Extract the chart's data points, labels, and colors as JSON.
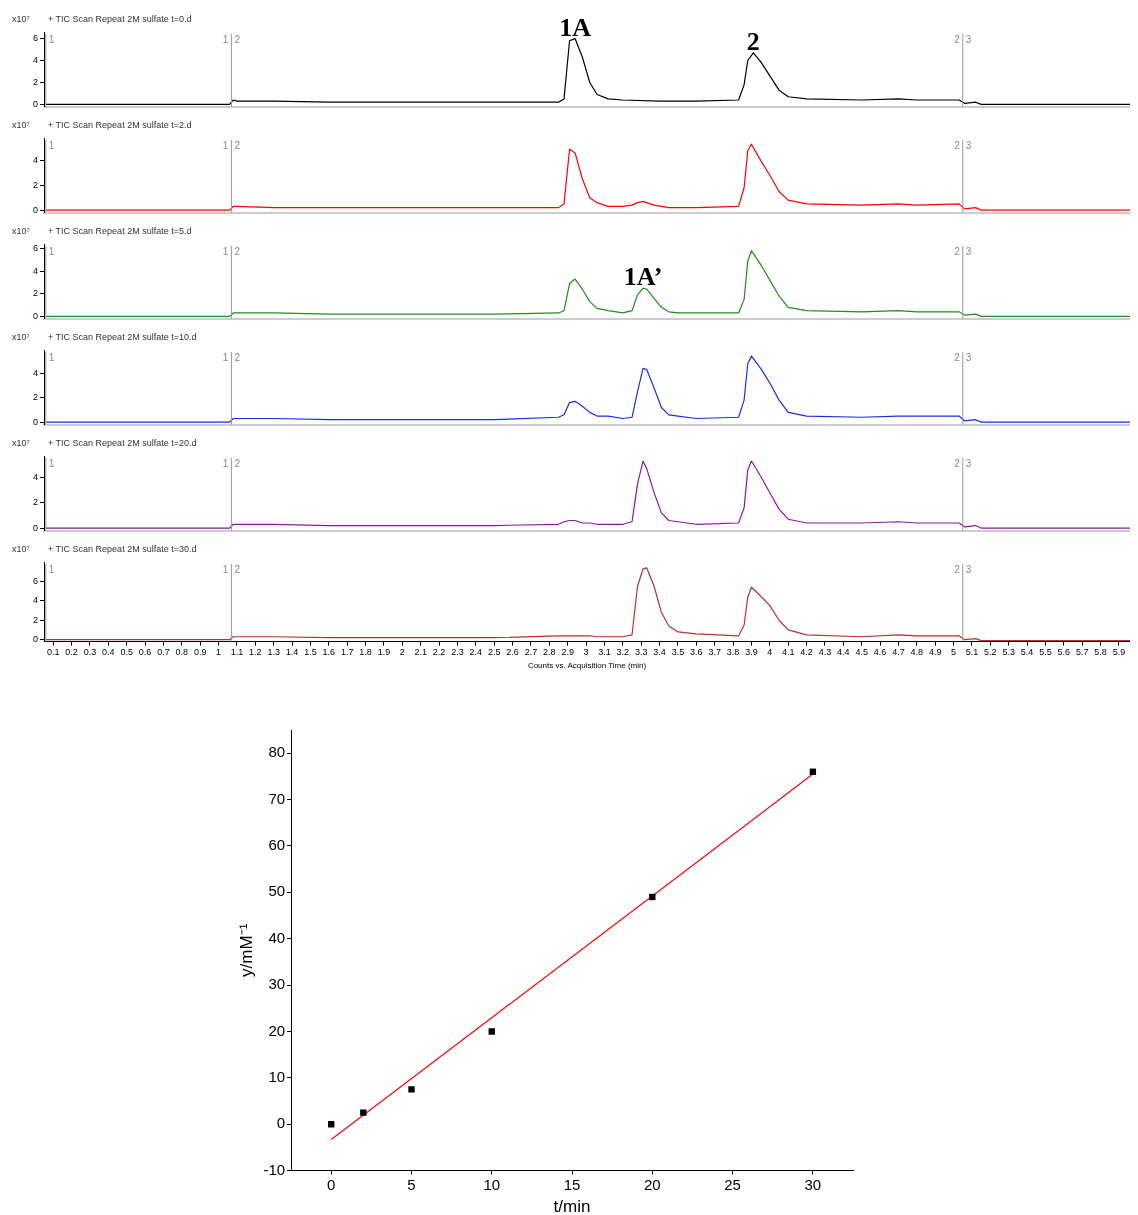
{
  "chart_data": [
    {
      "type": "line",
      "title": "+ TIC Scan Repeat 2M sulfate t=0.d",
      "ylabel": "x10⁷",
      "marker": "none",
      "grid": false,
      "tick_labels": "y",
      "xlim": [
        0.05,
        5.96
      ],
      "ylim": [
        -0.2,
        6.6
      ],
      "yticks": [
        0,
        2,
        4,
        6
      ],
      "x": [
        0.06,
        1.06,
        1.08,
        1.1,
        1.3,
        1.6,
        2.0,
        2.5,
        2.85,
        2.88,
        2.91,
        2.94,
        2.98,
        3.02,
        3.06,
        3.12,
        3.2,
        3.4,
        3.6,
        3.83,
        3.86,
        3.88,
        3.91,
        3.95,
        4.0,
        4.05,
        4.1,
        4.2,
        4.5,
        4.7,
        4.8,
        5.03,
        5.06,
        5.12,
        5.15,
        5.96
      ],
      "series": [
        {
          "color": "#000000",
          "values": [
            0,
            0,
            0.4,
            0.3,
            0.3,
            0.2,
            0.2,
            0.2,
            0.2,
            0.5,
            5.8,
            6.0,
            4.3,
            2.0,
            0.9,
            0.5,
            0.4,
            0.3,
            0.3,
            0.4,
            1.8,
            4.0,
            4.7,
            3.9,
            2.6,
            1.3,
            0.7,
            0.5,
            0.4,
            0.5,
            0.4,
            0.4,
            0.1,
            0.2,
            0,
            0
          ]
        }
      ],
      "ref_lines": [
        {
          "axis": "x",
          "value": 0.06,
          "color": "#999999"
        },
        {
          "axis": "x",
          "value": 1.07,
          "color": "#999999"
        },
        {
          "axis": "x",
          "value": 5.05,
          "color": "#999999"
        }
      ],
      "annotations": [
        {
          "text": "1A",
          "x": 2.94,
          "y": 6.0
        },
        {
          "text": "2",
          "x": 3.91,
          "y": 4.7
        },
        {
          "text": "1",
          "x": 0.06
        },
        {
          "text": "1 2",
          "x": 1.07
        },
        {
          "text": "2 3",
          "x": 5.05
        }
      ]
    },
    {
      "type": "line",
      "title": "+ TIC Scan Repeat 2M sulfate t=2.d",
      "ylabel": "x10⁷",
      "marker": "none",
      "grid": false,
      "tick_labels": "y",
      "xlim": [
        0.05,
        5.96
      ],
      "ylim": [
        -0.2,
        5.8
      ],
      "yticks": [
        0,
        2,
        4
      ],
      "x": [
        0.06,
        1.06,
        1.08,
        1.1,
        1.3,
        1.6,
        2.0,
        2.5,
        2.85,
        2.88,
        2.91,
        2.94,
        2.98,
        3.02,
        3.06,
        3.12,
        3.2,
        3.25,
        3.28,
        3.31,
        3.33,
        3.37,
        3.41,
        3.45,
        3.5,
        3.6,
        3.83,
        3.86,
        3.88,
        3.9,
        3.95,
        4.0,
        4.05,
        4.1,
        4.2,
        4.5,
        4.7,
        4.8,
        5.03,
        5.06,
        5.12,
        5.15,
        5.96
      ],
      "series": [
        {
          "color": "#ff0000",
          "values": [
            0,
            0,
            0.3,
            0.3,
            0.2,
            0.2,
            0.2,
            0.2,
            0.2,
            0.5,
            4.9,
            4.6,
            2.5,
            1.0,
            0.6,
            0.3,
            0.3,
            0.4,
            0.6,
            0.7,
            0.6,
            0.4,
            0.3,
            0.2,
            0.2,
            0.2,
            0.3,
            1.8,
            4.8,
            5.3,
            4.0,
            2.8,
            1.5,
            0.8,
            0.5,
            0.4,
            0.5,
            0.4,
            0.5,
            0.1,
            0.2,
            0,
            0
          ]
        }
      ],
      "ref_lines": [
        {
          "axis": "x",
          "value": 0.06,
          "color": "#999999"
        },
        {
          "axis": "x",
          "value": 1.07,
          "color": "#999999"
        },
        {
          "axis": "x",
          "value": 5.05,
          "color": "#999999"
        }
      ],
      "annotations": [
        {
          "text": "1",
          "x": 0.06
        },
        {
          "text": "1 2",
          "x": 1.07
        },
        {
          "text": "2 3",
          "x": 5.05
        }
      ]
    },
    {
      "type": "line",
      "title": "+ TIC Scan Repeat 2M sulfate t=5.d",
      "ylabel": "x10⁷",
      "marker": "none",
      "grid": false,
      "tick_labels": "y",
      "xlim": [
        0.05,
        5.96
      ],
      "ylim": [
        -0.2,
        6.4
      ],
      "yticks": [
        0,
        2,
        4,
        6
      ],
      "x": [
        0.06,
        1.06,
        1.08,
        1.1,
        1.3,
        1.6,
        2.0,
        2.5,
        2.85,
        2.88,
        2.91,
        2.94,
        2.98,
        3.02,
        3.06,
        3.12,
        3.2,
        3.25,
        3.28,
        3.31,
        3.33,
        3.37,
        3.41,
        3.45,
        3.5,
        3.6,
        3.83,
        3.86,
        3.88,
        3.9,
        3.95,
        4.0,
        4.05,
        4.1,
        4.2,
        4.5,
        4.7,
        4.8,
        5.03,
        5.06,
        5.12,
        5.15,
        5.96
      ],
      "series": [
        {
          "color": "#228b22",
          "values": [
            0,
            0,
            0.3,
            0.3,
            0.3,
            0.2,
            0.2,
            0.2,
            0.3,
            0.5,
            2.9,
            3.3,
            2.4,
            1.3,
            0.7,
            0.5,
            0.3,
            0.5,
            1.9,
            2.5,
            2.4,
            1.6,
            0.8,
            0.4,
            0.3,
            0.3,
            0.3,
            1.5,
            4.9,
            5.8,
            4.6,
            3.2,
            1.8,
            0.8,
            0.5,
            0.4,
            0.5,
            0.4,
            0.4,
            0.1,
            0.2,
            0,
            0
          ]
        }
      ],
      "ref_lines": [
        {
          "axis": "x",
          "value": 0.06,
          "color": "#999999"
        },
        {
          "axis": "x",
          "value": 1.07,
          "color": "#999999"
        },
        {
          "axis": "x",
          "value": 5.05,
          "color": "#999999"
        }
      ],
      "annotations": [
        {
          "text": "1A’",
          "x": 3.31,
          "y": 2.5
        },
        {
          "text": "1",
          "x": 0.06
        },
        {
          "text": "1 2",
          "x": 1.07
        },
        {
          "text": "2 3",
          "x": 5.05
        }
      ]
    },
    {
      "type": "line",
      "title": "+ TIC Scan Repeat 2M sulfate t=10.d",
      "ylabel": "x10⁷",
      "marker": "none",
      "grid": false,
      "tick_labels": "y",
      "xlim": [
        0.05,
        5.96
      ],
      "ylim": [
        -0.2,
        5.9
      ],
      "yticks": [
        0,
        2,
        4
      ],
      "x": [
        0.06,
        1.06,
        1.08,
        1.1,
        1.3,
        1.6,
        2.0,
        2.5,
        2.85,
        2.88,
        2.91,
        2.94,
        2.98,
        3.02,
        3.06,
        3.12,
        3.2,
        3.25,
        3.28,
        3.31,
        3.33,
        3.37,
        3.41,
        3.45,
        3.5,
        3.6,
        3.83,
        3.86,
        3.88,
        3.9,
        3.95,
        4.0,
        4.05,
        4.1,
        4.2,
        4.5,
        4.7,
        4.8,
        5.03,
        5.06,
        5.12,
        5.15,
        5.96
      ],
      "series": [
        {
          "color": "#1a2ee6",
          "values": [
            0,
            0,
            0.3,
            0.3,
            0.3,
            0.2,
            0.2,
            0.2,
            0.4,
            0.6,
            1.6,
            1.7,
            1.3,
            0.8,
            0.5,
            0.5,
            0.3,
            0.4,
            2.5,
            4.4,
            4.3,
            2.8,
            1.2,
            0.6,
            0.5,
            0.3,
            0.4,
            1.8,
            4.8,
            5.4,
            4.4,
            3.2,
            1.8,
            0.8,
            0.5,
            0.4,
            0.5,
            0.5,
            0.5,
            0.1,
            0.2,
            0,
            0
          ]
        }
      ],
      "ref_lines": [
        {
          "axis": "x",
          "value": 0.06,
          "color": "#999999"
        },
        {
          "axis": "x",
          "value": 1.07,
          "color": "#999999"
        },
        {
          "axis": "x",
          "value": 5.05,
          "color": "#999999"
        }
      ],
      "annotations": [
        {
          "text": "1",
          "x": 0.06
        },
        {
          "text": "1 2",
          "x": 1.07
        },
        {
          "text": "2 3",
          "x": 5.05
        }
      ]
    },
    {
      "type": "line",
      "title": "+ TIC Scan Repeat 2M sulfate t=20.d",
      "ylabel": "x10⁷",
      "marker": "none",
      "grid": false,
      "tick_labels": "y",
      "xlim": [
        0.05,
        5.96
      ],
      "ylim": [
        -0.2,
        5.7
      ],
      "yticks": [
        0,
        2,
        4
      ],
      "x": [
        0.06,
        1.06,
        1.08,
        1.1,
        1.3,
        1.6,
        2.0,
        2.5,
        2.85,
        2.88,
        2.91,
        2.94,
        2.98,
        3.02,
        3.06,
        3.12,
        3.2,
        3.25,
        3.28,
        3.31,
        3.33,
        3.37,
        3.41,
        3.45,
        3.5,
        3.6,
        3.83,
        3.86,
        3.88,
        3.9,
        3.95,
        4.0,
        4.05,
        4.1,
        4.2,
        4.5,
        4.7,
        4.8,
        5.03,
        5.06,
        5.12,
        5.15,
        5.96
      ],
      "series": [
        {
          "color": "#8b1a9a",
          "values": [
            0,
            0,
            0.3,
            0.3,
            0.3,
            0.2,
            0.2,
            0.2,
            0.3,
            0.5,
            0.6,
            0.6,
            0.4,
            0.4,
            0.3,
            0.3,
            0.3,
            0.5,
            3.5,
            5.3,
            4.7,
            2.8,
            1.2,
            0.6,
            0.5,
            0.3,
            0.4,
            1.6,
            4.6,
            5.3,
            4.1,
            2.8,
            1.5,
            0.7,
            0.4,
            0.4,
            0.5,
            0.4,
            0.4,
            0.1,
            0.2,
            0,
            0
          ]
        }
      ],
      "ref_lines": [
        {
          "axis": "x",
          "value": 0.06,
          "color": "#999999"
        },
        {
          "axis": "x",
          "value": 1.07,
          "color": "#999999"
        },
        {
          "axis": "x",
          "value": 5.05,
          "color": "#999999"
        }
      ],
      "annotations": [
        {
          "text": "1",
          "x": 0.06
        },
        {
          "text": "1 2",
          "x": 1.07
        },
        {
          "text": "2 3",
          "x": 5.05
        }
      ]
    },
    {
      "type": "line",
      "title": "+ TIC Scan Repeat 2M sulfate t=30.d",
      "ylabel": "x10⁷",
      "xlabel": "Counts vs. Acquisition Time (min)",
      "marker": "none",
      "grid": false,
      "xlim": [
        0.05,
        5.96
      ],
      "ylim": [
        -0.2,
        8
      ],
      "yticks": [
        0,
        2,
        4,
        6
      ],
      "xticks": [
        0.1,
        0.2,
        0.3,
        0.4,
        0.5,
        0.6,
        0.7,
        0.8,
        0.9,
        1,
        1.1,
        1.2,
        1.3,
        1.4,
        1.5,
        1.6,
        1.7,
        1.8,
        1.9,
        2,
        2.1,
        2.2,
        2.3,
        2.4,
        2.5,
        2.6,
        2.7,
        2.8,
        2.9,
        3,
        3.1,
        3.2,
        3.3,
        3.4,
        3.5,
        3.6,
        3.7,
        3.8,
        3.9,
        4,
        4.1,
        4.2,
        4.3,
        4.4,
        4.5,
        4.6,
        4.7,
        4.8,
        4.9,
        5,
        5.1,
        5.2,
        5.3,
        5.4,
        5.5,
        5.6,
        5.7,
        5.8,
        5.9
      ],
      "x": [
        0.06,
        1.06,
        1.08,
        1.1,
        1.3,
        1.6,
        2.0,
        2.5,
        2.85,
        2.88,
        2.91,
        2.94,
        2.98,
        3.02,
        3.06,
        3.12,
        3.2,
        3.25,
        3.28,
        3.31,
        3.33,
        3.37,
        3.41,
        3.45,
        3.5,
        3.6,
        3.83,
        3.86,
        3.88,
        3.9,
        3.95,
        4.0,
        4.05,
        4.1,
        4.2,
        4.5,
        4.7,
        4.8,
        5.03,
        5.06,
        5.12,
        5.15,
        5.96
      ],
      "series": [
        {
          "color": "#b83232",
          "values": [
            0,
            0,
            0.3,
            0.3,
            0.3,
            0.2,
            0.2,
            0.2,
            0.4,
            0.4,
            0.4,
            0.4,
            0.4,
            0.4,
            0.3,
            0.3,
            0.3,
            0.5,
            5.5,
            7.3,
            7.4,
            5.5,
            2.8,
            1.4,
            0.8,
            0.6,
            0.4,
            1.5,
            4.4,
            5.4,
            4.5,
            3.5,
            2.0,
            1.0,
            0.5,
            0.3,
            0.5,
            0.4,
            0.4,
            0.0,
            0.1,
            -0.1,
            -0.1
          ]
        }
      ],
      "ref_lines": [
        {
          "axis": "x",
          "value": 0.06,
          "color": "#999999"
        },
        {
          "axis": "x",
          "value": 1.07,
          "color": "#999999"
        },
        {
          "axis": "x",
          "value": 5.05,
          "color": "#999999"
        }
      ],
      "annotations": [
        {
          "text": "1",
          "x": 0.06
        },
        {
          "text": "1 2",
          "x": 1.07
        },
        {
          "text": "2 3",
          "x": 5.05
        }
      ]
    },
    {
      "type": "scatter",
      "xlabel": "t/min",
      "ylabel": "y/mM⁻¹",
      "grid": false,
      "xlim": [
        -2.5,
        32.5
      ],
      "xticks": [
        0,
        5,
        10,
        15,
        20,
        25,
        30
      ],
      "ylim": [
        -10,
        85
      ],
      "yticks": [
        -10,
        0,
        10,
        20,
        30,
        40,
        50,
        60,
        70,
        80
      ],
      "series": [
        {
          "type": "scatter",
          "marker": "square",
          "color": "#000000",
          "x": [
            0,
            2,
            5,
            10,
            20,
            30
          ],
          "values": [
            0,
            2.5,
            7.5,
            20,
            49,
            76
          ]
        },
        {
          "type": "line",
          "marker": "none",
          "color": "#ff0000",
          "x": [
            0,
            30
          ],
          "values": [
            -3.3,
            75.5
          ]
        }
      ]
    }
  ]
}
